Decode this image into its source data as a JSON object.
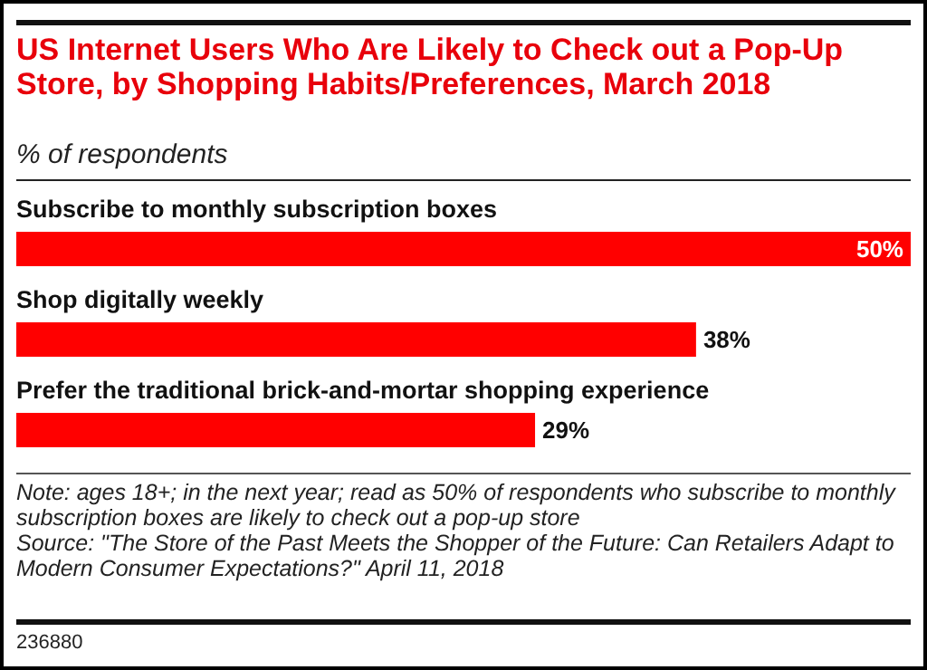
{
  "chart_data": {
    "type": "bar",
    "orientation": "horizontal",
    "title": "US Internet Users Who Are Likely to Check out a Pop-Up Store, by Shopping Habits/Preferences, March 2018",
    "subtitle": "% of respondents",
    "categories": [
      "Subscribe to monthly subscription boxes",
      "Shop digitally weekly",
      "Prefer the traditional brick-and-mortar shopping experience"
    ],
    "values": [
      50,
      38,
      29
    ],
    "color": "#ff0000",
    "data_labels": true,
    "value_labels": [
      "50%",
      "38%",
      "29%"
    ],
    "annotations": [
      "Note: ages 18+; in the next year; read as 50% of respondents who subscribe to monthly subscription boxes are likely to check out a pop-up store",
      "Source: \"The Store of the Past Meets the Shopper of the Future: Can Retailers Adapt to Modern Consumer Expectations?\" April 11, 2018",
      "236880"
    ]
  }
}
